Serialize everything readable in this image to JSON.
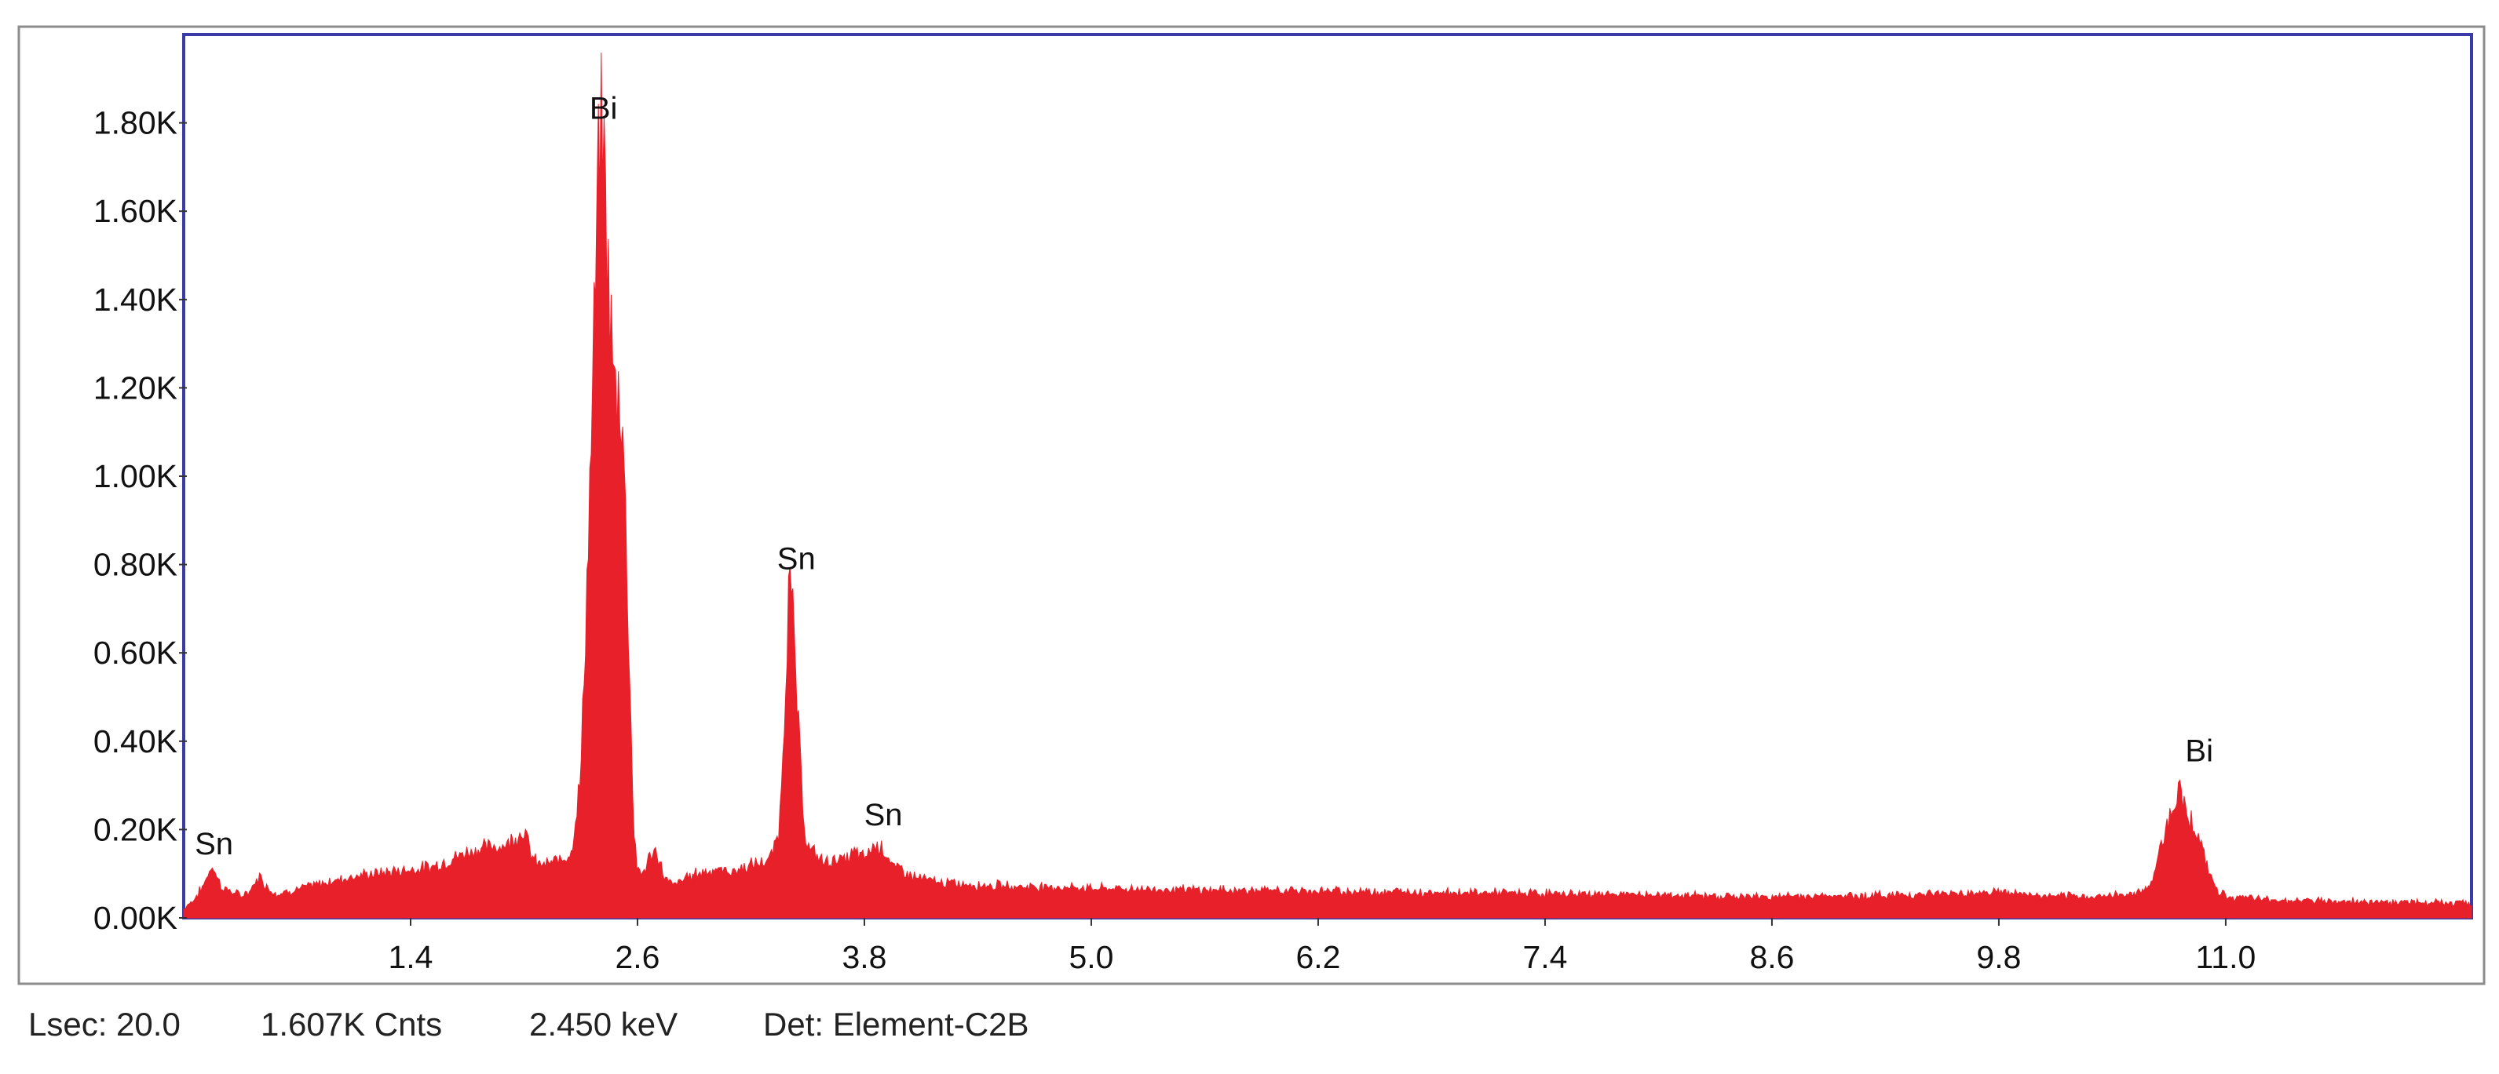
{
  "chart_data": {
    "type": "area",
    "x_unit": "keV",
    "y_unit": "counts",
    "xlim": [
      0.2,
      12.3
    ],
    "ylim": [
      0,
      2000
    ],
    "x_ticks": [
      1.4,
      2.6,
      3.8,
      5.0,
      6.2,
      7.4,
      8.6,
      9.8,
      11.0
    ],
    "x_tick_labels": [
      "1.4",
      "2.6",
      "3.8",
      "5.0",
      "6.2",
      "7.4",
      "8.6",
      "9.8",
      "11.0"
    ],
    "y_ticks": [
      0,
      200,
      400,
      600,
      800,
      1000,
      1200,
      1400,
      1600,
      1800
    ],
    "y_tick_labels": [
      "0.00K",
      "0.20K",
      "0.40K",
      "0.60K",
      "0.80K",
      "1.00K",
      "1.20K",
      "1.40K",
      "1.60K",
      "1.80K"
    ],
    "grid": false,
    "fill_color": "#e8202a",
    "frame_color": "#3a3aa8",
    "spectrum": {
      "x": [
        0.2,
        0.25,
        0.3,
        0.35,
        0.4,
        0.45,
        0.5,
        0.55,
        0.6,
        0.65,
        0.7,
        0.75,
        0.8,
        0.85,
        0.9,
        0.95,
        1.0,
        1.1,
        1.2,
        1.3,
        1.4,
        1.5,
        1.6,
        1.7,
        1.8,
        1.9,
        2.0,
        2.05,
        2.1,
        2.15,
        2.2,
        2.25,
        2.3,
        2.35,
        2.4,
        2.42,
        2.45,
        2.48,
        2.5,
        2.52,
        2.55,
        2.58,
        2.6,
        2.63,
        2.66,
        2.7,
        2.75,
        2.8,
        2.85,
        2.9,
        3.0,
        3.1,
        3.2,
        3.3,
        3.35,
        3.38,
        3.4,
        3.42,
        3.44,
        3.46,
        3.48,
        3.5,
        3.55,
        3.6,
        3.65,
        3.7,
        3.75,
        3.8,
        3.85,
        3.9,
        3.95,
        4.0,
        4.05,
        4.1,
        4.2,
        4.4,
        4.6,
        4.8,
        5.0,
        5.5,
        6.0,
        6.5,
        7.0,
        7.5,
        8.0,
        8.5,
        9.0,
        9.5,
        9.8,
        10.0,
        10.2,
        10.4,
        10.5,
        10.6,
        10.65,
        10.7,
        10.75,
        10.8,
        10.85,
        10.9,
        10.95,
        11.0,
        11.1,
        11.3,
        11.6,
        12.0,
        12.3
      ],
      "y": [
        20,
        40,
        70,
        120,
        70,
        60,
        50,
        60,
        95,
        65,
        55,
        60,
        65,
        70,
        75,
        80,
        85,
        95,
        100,
        105,
        110,
        115,
        130,
        150,
        160,
        165,
        200,
        130,
        120,
        125,
        135,
        150,
        320,
        1000,
        1780,
        1750,
        1400,
        1180,
        1200,
        1150,
        700,
        200,
        110,
        100,
        135,
        150,
        85,
        75,
        90,
        100,
        110,
        105,
        120,
        130,
        200,
        500,
        760,
        690,
        520,
        360,
        220,
        160,
        140,
        125,
        135,
        130,
        150,
        135,
        165,
        160,
        115,
        110,
        95,
        90,
        80,
        75,
        72,
        70,
        68,
        64,
        62,
        60,
        58,
        55,
        52,
        48,
        50,
        55,
        60,
        50,
        48,
        50,
        55,
        70,
        150,
        230,
        290,
        240,
        190,
        120,
        65,
        50,
        45,
        40,
        38,
        35,
        33
      ]
    },
    "peak_labels": [
      {
        "text": "Sn",
        "x": 0.36,
        "y": 130
      },
      {
        "text": "Bi",
        "x": 2.42,
        "y": 1795
      },
      {
        "text": "Sn",
        "x": 3.44,
        "y": 775
      },
      {
        "text": "Sn",
        "x": 3.9,
        "y": 195
      },
      {
        "text": "Bi",
        "x": 10.86,
        "y": 340
      }
    ]
  },
  "status": {
    "lsec": "Lsec: 20.0",
    "counts": "1.607K Cnts",
    "energy": "2.450 keV",
    "detector": "Det: Element-C2B"
  }
}
